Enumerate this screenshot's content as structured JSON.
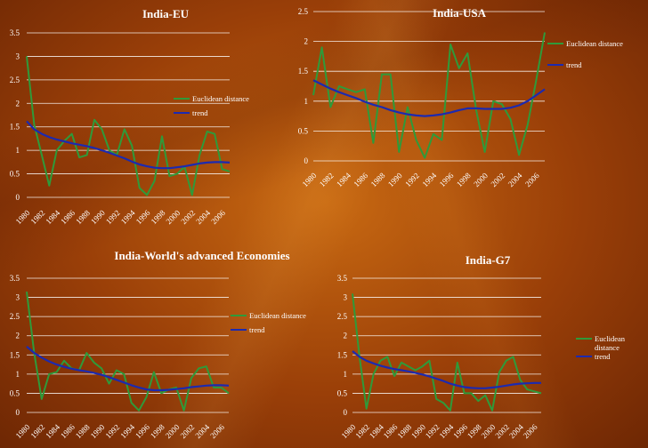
{
  "colors": {
    "euclidean": "#2f9a3a",
    "trend": "#1c2ab0",
    "grid": "#ffffff",
    "text": "#ffffff"
  },
  "chart_data": [
    {
      "id": "eu",
      "type": "line",
      "title": "India-EU",
      "ylim": [
        0,
        3.5
      ],
      "yticks": [
        "0",
        "0.5",
        "1",
        "1.5",
        "2",
        "2.5",
        "3",
        "3.5"
      ],
      "xticks": [
        "1980",
        "1982",
        "1984",
        "1986",
        "1988",
        "1990",
        "1992",
        "1994",
        "1996",
        "1998",
        "2000",
        "2002",
        "2004",
        "2006"
      ],
      "x_start": 1980,
      "x_end": 2007,
      "series": [
        {
          "name": "Euclidean distance",
          "values": [
            3.0,
            1.55,
            0.9,
            0.25,
            1.0,
            1.2,
            1.35,
            0.85,
            0.9,
            1.65,
            1.45,
            1.0,
            0.9,
            1.45,
            1.1,
            0.2,
            0.05,
            0.35,
            1.3,
            0.45,
            0.5,
            0.65,
            0.05,
            0.9,
            1.4,
            1.35,
            0.6,
            0.55
          ]
        },
        {
          "name": "trend",
          "values": [
            1.62,
            1.45,
            1.35,
            1.28,
            1.23,
            1.19,
            1.15,
            1.12,
            1.09,
            1.05,
            1.0,
            0.95,
            0.89,
            0.83,
            0.76,
            0.7,
            0.66,
            0.63,
            0.62,
            0.62,
            0.64,
            0.66,
            0.69,
            0.72,
            0.74,
            0.75,
            0.75,
            0.74
          ]
        }
      ]
    },
    {
      "id": "usa",
      "type": "line",
      "title": "India-USA",
      "ylim": [
        0,
        2.5
      ],
      "yticks": [
        "0",
        "0.5",
        "1",
        "1.5",
        "2",
        "2.5"
      ],
      "xticks": [
        "1980",
        "1982",
        "1984",
        "1986",
        "1988",
        "1990",
        "1992",
        "1994",
        "1996",
        "1998",
        "2000",
        "2002",
        "2004",
        "2006"
      ],
      "x_start": 1980,
      "x_end": 2007,
      "series": [
        {
          "name": "Euclidean distance",
          "values": [
            1.1,
            1.9,
            0.9,
            1.25,
            1.2,
            1.15,
            1.2,
            0.3,
            1.45,
            1.45,
            0.15,
            0.9,
            0.35,
            0.05,
            0.45,
            0.35,
            1.95,
            1.55,
            1.8,
            0.85,
            0.15,
            1.0,
            0.95,
            0.7,
            0.1,
            0.6,
            1.35,
            2.15
          ]
        },
        {
          "name": "trend",
          "values": [
            1.35,
            1.28,
            1.21,
            1.15,
            1.1,
            1.05,
            0.99,
            0.94,
            0.9,
            0.85,
            0.81,
            0.78,
            0.76,
            0.75,
            0.76,
            0.78,
            0.81,
            0.85,
            0.88,
            0.88,
            0.87,
            0.87,
            0.87,
            0.89,
            0.93,
            1.0,
            1.1,
            1.2
          ]
        }
      ]
    },
    {
      "id": "world",
      "type": "line",
      "title": "India-World's advanced Economies",
      "ylim": [
        0,
        3.5
      ],
      "yticks": [
        "0",
        "0.5",
        "1",
        "1.5",
        "2",
        "2.5",
        "3",
        "3.5"
      ],
      "xticks": [
        "1980",
        "1982",
        "1984",
        "1986",
        "1988",
        "1990",
        "1992",
        "1994",
        "1996",
        "1998",
        "2000",
        "2002",
        "2004",
        "2006"
      ],
      "x_start": 1980,
      "x_end": 2007,
      "series": [
        {
          "name": "Euclidean distance",
          "values": [
            3.15,
            1.55,
            0.35,
            1.0,
            1.05,
            1.35,
            1.15,
            1.1,
            1.55,
            1.3,
            1.15,
            0.75,
            1.1,
            1.0,
            0.25,
            0.05,
            0.4,
            1.05,
            0.5,
            0.6,
            0.65,
            0.05,
            0.9,
            1.15,
            1.2,
            0.65,
            0.65,
            0.5
          ]
        },
        {
          "name": "trend",
          "values": [
            1.72,
            1.55,
            1.43,
            1.33,
            1.25,
            1.19,
            1.14,
            1.1,
            1.07,
            1.03,
            0.98,
            0.92,
            0.85,
            0.78,
            0.71,
            0.65,
            0.6,
            0.58,
            0.58,
            0.59,
            0.61,
            0.63,
            0.66,
            0.68,
            0.7,
            0.71,
            0.71,
            0.7
          ]
        }
      ]
    },
    {
      "id": "g7",
      "type": "line",
      "title": "India-G7",
      "ylim": [
        0,
        3.5
      ],
      "yticks": [
        "0",
        "0.5",
        "1",
        "1.5",
        "2",
        "2.5",
        "3",
        "3.5"
      ],
      "xticks": [
        "1980",
        "1982",
        "1984",
        "1986",
        "1988",
        "1990",
        "1992",
        "1994",
        "1996",
        "1998",
        "2000",
        "2002",
        "2004",
        "2006"
      ],
      "x_start": 1980,
      "x_end": 2007,
      "series": [
        {
          "name": "Euclidean distance",
          "values": [
            3.1,
            1.45,
            0.1,
            1.0,
            1.35,
            1.45,
            0.95,
            1.3,
            1.2,
            1.1,
            1.2,
            1.35,
            0.35,
            0.25,
            0.05,
            1.3,
            0.5,
            0.5,
            0.3,
            0.45,
            0.05,
            1.05,
            1.35,
            1.45,
            0.85,
            0.6,
            0.55,
            0.5
          ]
        },
        {
          "name": "trend",
          "values": [
            1.6,
            1.45,
            1.35,
            1.28,
            1.22,
            1.17,
            1.13,
            1.1,
            1.07,
            1.03,
            0.99,
            0.94,
            0.88,
            0.82,
            0.75,
            0.7,
            0.66,
            0.64,
            0.63,
            0.63,
            0.65,
            0.67,
            0.7,
            0.73,
            0.75,
            0.76,
            0.77,
            0.77
          ]
        }
      ]
    }
  ]
}
